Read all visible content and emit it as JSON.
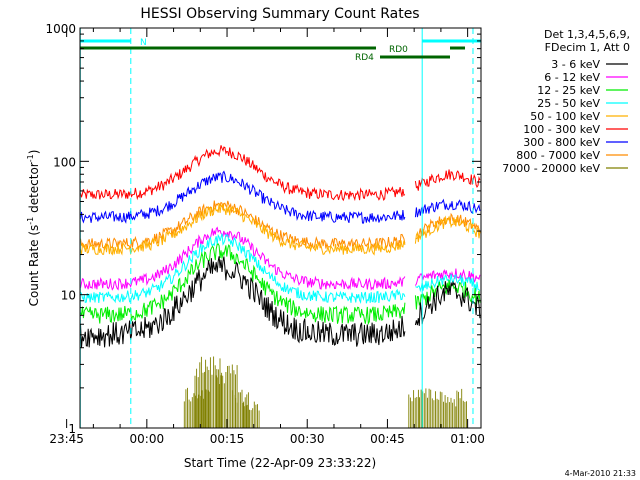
{
  "chart_data": {
    "type": "line",
    "title": "HESSI Observing Summary Count Rates",
    "xlabel": "Start Time (22-Apr-09 23:33:22)",
    "ylabel_main": "Count Rate (s",
    "ylabel_sup1": "-1",
    "ylabel_mid": " detector",
    "ylabel_sup2": "-1",
    "ylabel_end": ")",
    "yscale": "log",
    "ylim": [
      1,
      1000
    ],
    "xlim_minutes": [
      -12.5,
      62.5
    ],
    "y_ticks": [
      {
        "value": 1,
        "label": "1"
      },
      {
        "value": 10,
        "label": "10"
      },
      {
        "value": 100,
        "label": "100"
      },
      {
        "value": 1000,
        "label": "1000"
      }
    ],
    "x_ticks": [
      {
        "value": -15,
        "label": "23:45"
      },
      {
        "value": 0,
        "label": "00:00"
      },
      {
        "value": 15,
        "label": "00:15"
      },
      {
        "value": 30,
        "label": "00:30"
      },
      {
        "value": 45,
        "label": "00:45"
      },
      {
        "value": 60,
        "label": "01:00"
      }
    ],
    "legend_header": [
      "Det 1,3,4,5,6,9,",
      "FDecim 1, Att 0"
    ],
    "series": [
      {
        "name": "3 - 6 keV",
        "color": "#000000",
        "base": 5.0,
        "peak": 16,
        "peak2": 10.5
      },
      {
        "name": "6 - 12 keV",
        "color": "#ff00ff",
        "base": 12.0,
        "peak": 30,
        "peak2": 14.5
      },
      {
        "name": "12 - 25 keV",
        "color": "#00ee00",
        "base": 7.0,
        "peak": 21,
        "peak2": 11.5
      },
      {
        "name": "25 - 50 keV",
        "color": "#00ffff",
        "base": 9.5,
        "peak": 26,
        "peak2": 13.0
      },
      {
        "name": "50 - 100 keV",
        "color": "#ffb000",
        "base": 22.0,
        "peak": 44,
        "peak2": 35.0
      },
      {
        "name": "100 - 300 keV",
        "color": "#ff0000",
        "base": 56.0,
        "peak": 120,
        "peak2": 80.0
      },
      {
        "name": "300 - 800 keV",
        "color": "#0000ff",
        "base": 38.0,
        "peak": 76,
        "peak2": 48.0
      },
      {
        "name": "800 - 7000 keV",
        "color": "#ff8c00",
        "base": 24.0,
        "peak": 47,
        "peak2": 37.0
      },
      {
        "name": "7000 - 20000 keV",
        "color": "#808000",
        "base": 0,
        "peak": 3.5,
        "peak2": 2.0
      }
    ],
    "annotations": {
      "n_label": "N",
      "rd0_label": "RD0",
      "rd4_label": "RD4",
      "footer": "4-Mar-2010 21:33"
    },
    "colors": {
      "saa_cyan": "#00ffff",
      "bar_green": "#006400"
    }
  }
}
